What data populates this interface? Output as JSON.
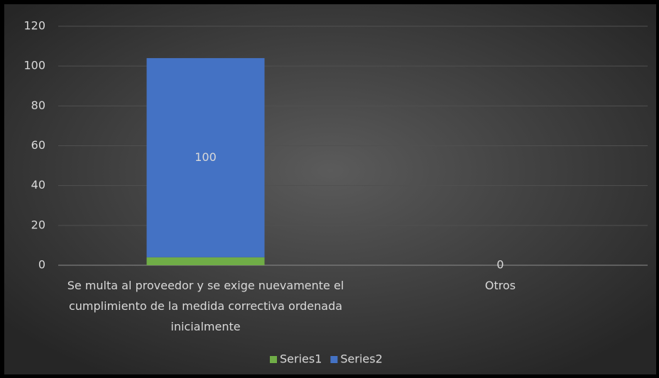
{
  "chart_data": {
    "type": "stacked_bar",
    "categories": [
      "Se multa al proveedor y se exige nuevamente el cumplimiento de la medida correctiva ordenada inicialmente",
      "Otros"
    ],
    "series": [
      {
        "name": "Series1",
        "color": "#70ad47",
        "values": [
          4,
          0
        ],
        "data_labels": false
      },
      {
        "name": "Series2",
        "color": "#4472c4",
        "values": [
          100,
          0
        ],
        "data_labels": true
      }
    ],
    "ylim": [
      0,
      120
    ],
    "yticks": [
      0,
      20,
      40,
      60,
      80,
      100,
      120
    ],
    "grid": true,
    "legend": "bottom"
  }
}
